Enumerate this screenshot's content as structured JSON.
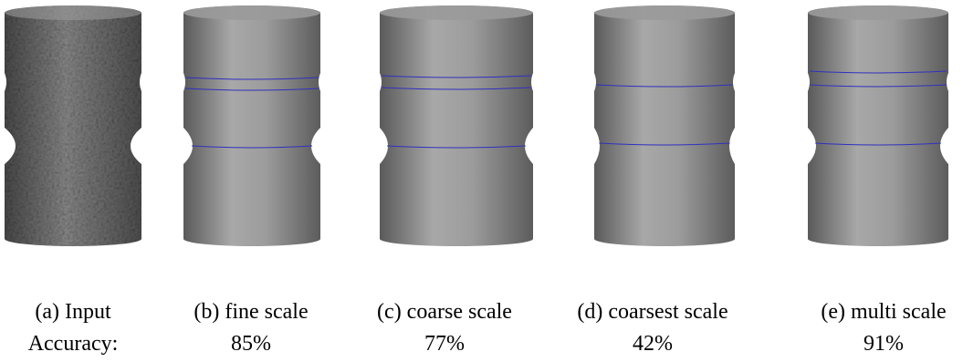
{
  "captions": [
    "(a) Input",
    "(b) fine scale",
    "(c) coarse scale",
    "(d) coarsest scale",
    "(e) multi scale"
  ],
  "accuracy": {
    "label": "Accuracy:",
    "values": [
      "85%",
      "77%",
      "42%",
      "91%"
    ]
  }
}
